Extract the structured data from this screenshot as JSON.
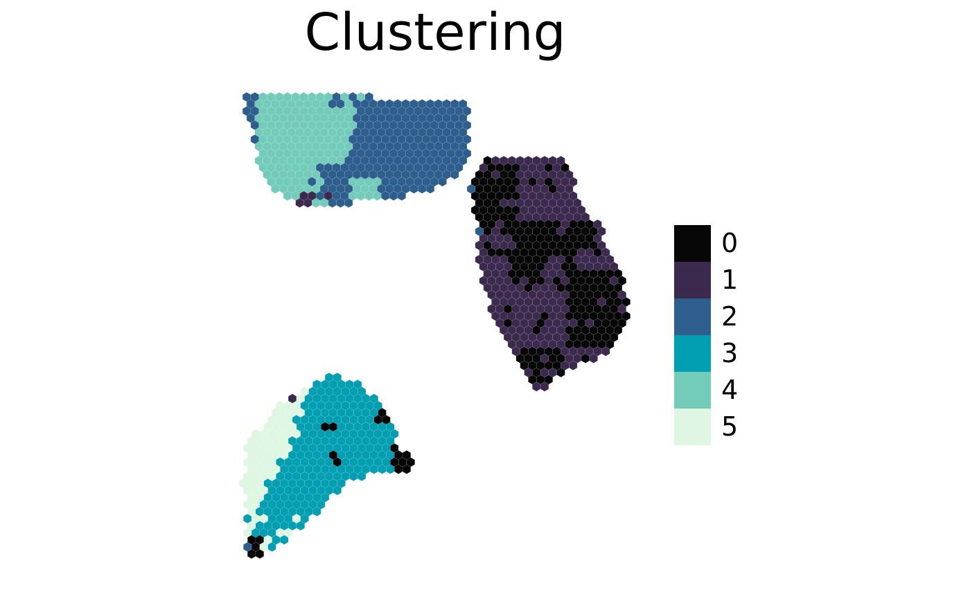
{
  "chart_data": {
    "type": "spatial-hexbin",
    "title": "Clustering",
    "legend": {
      "placement": "right",
      "entries": [
        {
          "label": "0",
          "color": "#070707"
        },
        {
          "label": "1",
          "color": "#3b2a4e"
        },
        {
          "label": "2",
          "color": "#2d5e8d"
        },
        {
          "label": "3",
          "color": "#029eb2"
        },
        {
          "label": "4",
          "color": "#73ccba"
        },
        {
          "label": "5",
          "color": "#def6e2"
        }
      ]
    },
    "axes": "none",
    "grid": false,
    "sections": [
      {
        "name": "top-left section",
        "dominant_clusters": [
          "4",
          "2"
        ]
      },
      {
        "name": "right section",
        "dominant_clusters": [
          "1",
          "0"
        ]
      },
      {
        "name": "bottom-left section",
        "dominant_clusters": [
          "3",
          "5"
        ]
      }
    ]
  }
}
